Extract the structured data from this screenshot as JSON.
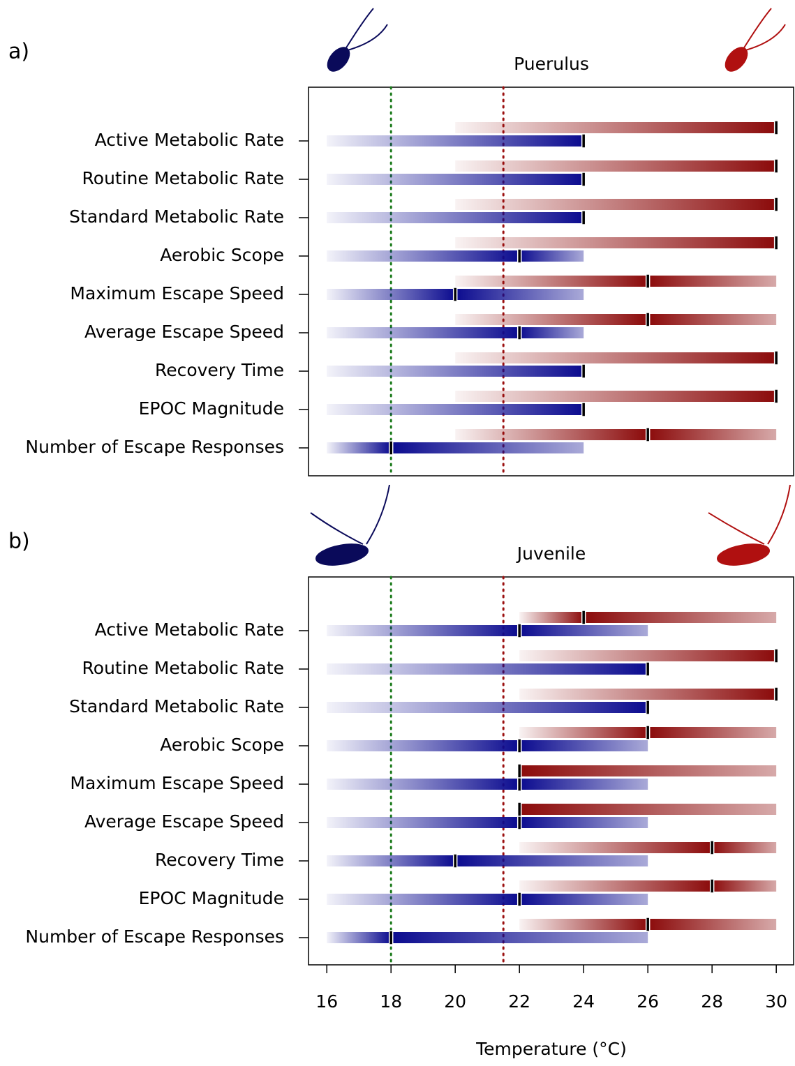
{
  "chart_data": [
    {
      "type": "range-bar",
      "panel_label": "a)",
      "title": "Puerulus",
      "categories": [
        "Active Metabolic Rate",
        "Routine Metabolic Rate",
        "Standard Metabolic Rate",
        "Aerobic Scope",
        "Maximum Escape Speed",
        "Average Escape Speed",
        "Recovery Time",
        "EPOC Magnitude",
        "Number of Escape Responses"
      ],
      "series": [
        {
          "color": "#0b0b8f",
          "ranges": [
            [
              16,
              24
            ],
            [
              16,
              24
            ],
            [
              16,
              24
            ],
            [
              16,
              24
            ],
            [
              16,
              24
            ],
            [
              16,
              24
            ],
            [
              16,
              24
            ],
            [
              16,
              24
            ],
            [
              16,
              24
            ]
          ],
          "values": [
            24,
            24,
            24,
            22,
            20,
            22,
            24,
            24,
            18
          ]
        },
        {
          "color": "#8b0a0a",
          "ranges": [
            [
              20,
              30
            ],
            [
              20,
              30
            ],
            [
              20,
              30
            ],
            [
              20,
              30
            ],
            [
              20,
              30
            ],
            [
              20,
              30
            ],
            [
              20,
              30
            ],
            [
              20,
              30
            ],
            [
              20,
              30
            ]
          ],
          "values": [
            30,
            30,
            30,
            30,
            26,
            26,
            30,
            30,
            26
          ]
        }
      ],
      "vlines": [
        {
          "value": 18,
          "color": "#1a7a1a"
        },
        {
          "value": 21.5,
          "color": "#9b1010"
        }
      ],
      "xlim": [
        15.43,
        30.54
      ]
    },
    {
      "type": "range-bar",
      "panel_label": "b)",
      "title": "Juvenile",
      "categories": [
        "Active Metabolic Rate",
        "Routine Metabolic Rate",
        "Standard Metabolic Rate",
        "Aerobic Scope",
        "Maximum Escape Speed",
        "Average Escape Speed",
        "Recovery Time",
        "EPOC Magnitude",
        "Number of Escape Responses"
      ],
      "series": [
        {
          "color": "#0b0b8f",
          "ranges": [
            [
              16,
              26
            ],
            [
              16,
              26
            ],
            [
              16,
              26
            ],
            [
              16,
              26
            ],
            [
              16,
              26
            ],
            [
              16,
              26
            ],
            [
              16,
              26
            ],
            [
              16,
              26
            ],
            [
              16,
              26
            ]
          ],
          "values": [
            22,
            26,
            26,
            22,
            22,
            22,
            20,
            22,
            18
          ]
        },
        {
          "color": "#8b0a0a",
          "ranges": [
            [
              22,
              30
            ],
            [
              22,
              30
            ],
            [
              22,
              30
            ],
            [
              22,
              30
            ],
            [
              22,
              30
            ],
            [
              22,
              30
            ],
            [
              22,
              30
            ],
            [
              22,
              30
            ],
            [
              22,
              30
            ]
          ],
          "values": [
            24,
            30,
            30,
            26,
            22,
            22,
            28,
            28,
            26
          ]
        }
      ],
      "vlines": [
        {
          "value": 18,
          "color": "#1a7a1a"
        },
        {
          "value": 21.5,
          "color": "#9b1010"
        }
      ],
      "xlim": [
        15.43,
        30.54
      ],
      "xticks": [
        16,
        18,
        20,
        22,
        24,
        26,
        28,
        30
      ],
      "xlabel": "Temperature (°C)"
    }
  ]
}
